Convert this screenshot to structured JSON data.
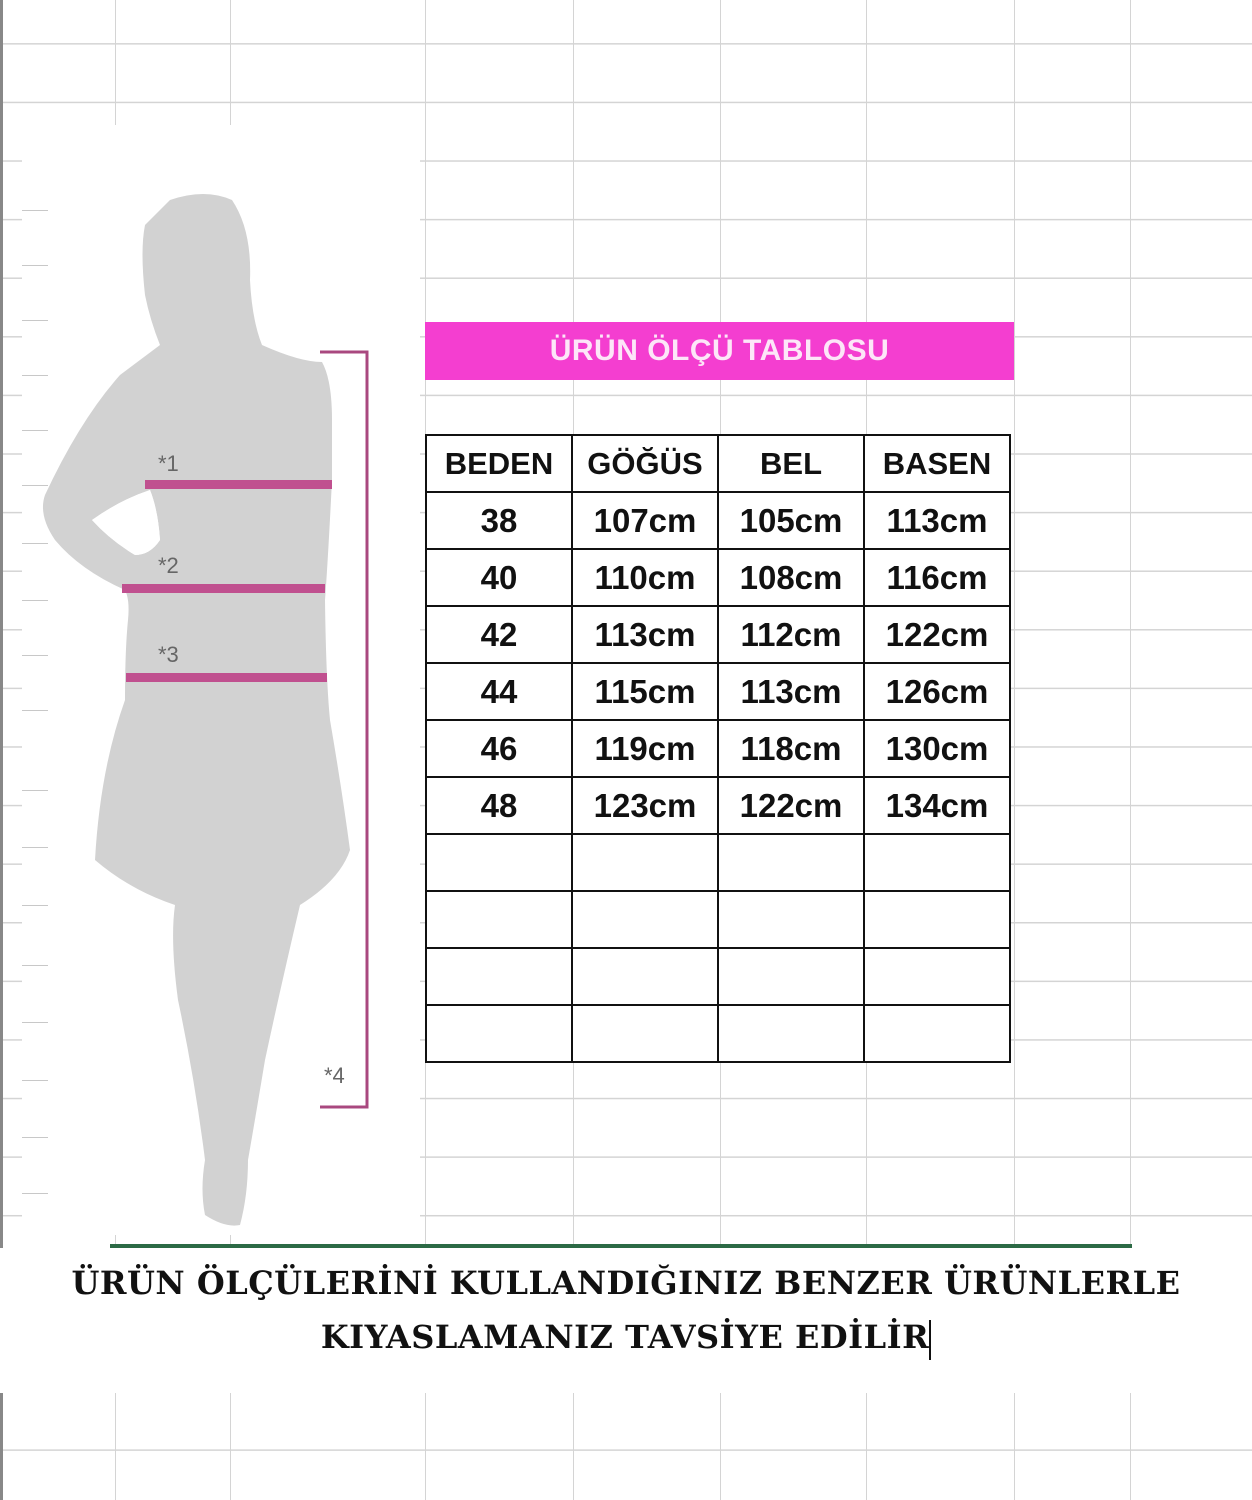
{
  "chart_title": "ÜRÜN ÖLÇÜ TABLOSU",
  "table": {
    "headers": [
      "BEDEN",
      "GÖĞÜS",
      "BEL",
      "BASEN"
    ],
    "rows": [
      [
        "38",
        "107cm",
        "105cm",
        "113cm"
      ],
      [
        "40",
        "110cm",
        "108cm",
        "116cm"
      ],
      [
        "42",
        "113cm",
        "112cm",
        "122cm"
      ],
      [
        "44",
        "115cm",
        "113cm",
        "126cm"
      ],
      [
        "46",
        "119cm",
        "118cm",
        "130cm"
      ],
      [
        "48",
        "123cm",
        "122cm",
        "134cm"
      ],
      [
        "",
        "",
        "",
        ""
      ],
      [
        "",
        "",
        "",
        ""
      ],
      [
        "",
        "",
        "",
        ""
      ],
      [
        "",
        "",
        "",
        ""
      ]
    ]
  },
  "figure": {
    "labels": [
      "*1",
      "*2",
      "*3",
      "*4"
    ],
    "marker_color": "#c0508f",
    "silhouette_color": "#d2d2d2"
  },
  "notice": {
    "line1": "ÜRÜN ÖLÇÜLERİNİ KULLANDIĞINIZ BENZER ÜRÜNLERLE",
    "line2": "KIYASLAMANIZ TAVSİYE EDİLİR"
  },
  "colors": {
    "title_bar": "#f43ed0",
    "grid": "#d4d4d4",
    "selection_border": "#2c6a45"
  }
}
